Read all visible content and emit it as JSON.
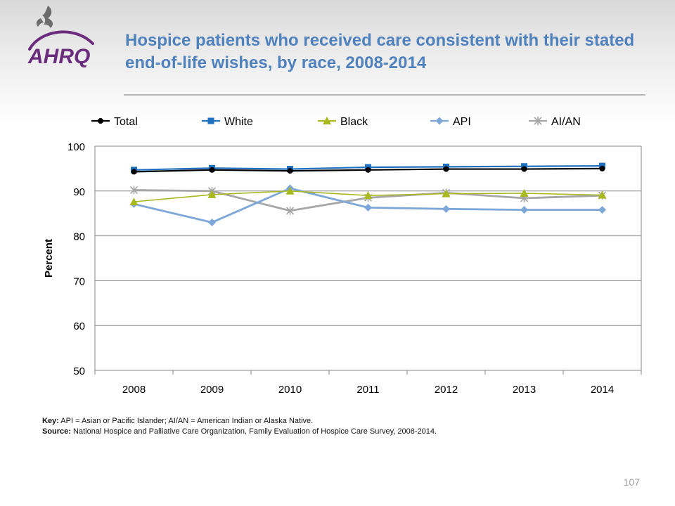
{
  "header": {
    "logo_text": "AHRQ",
    "title": "Hospice patients who received care consistent with their stated end-of-life wishes, by race, 2008-2014"
  },
  "notes": {
    "key_label": "Key:",
    "key_text": "API = Asian or Pacific Islander; AI/AN = American Indian or Alaska Native.",
    "source_label": "Source:",
    "source_text": "National Hospice and Palliative Care Organization, Family Evaluation of Hospice Care Survey, 2008-2014."
  },
  "page_number": "107",
  "chart_data": {
    "type": "line",
    "title": "",
    "xlabel": "",
    "ylabel": "Percent",
    "categories": [
      "2008",
      "2009",
      "2010",
      "2011",
      "2012",
      "2013",
      "2014"
    ],
    "ylim": [
      50,
      100
    ],
    "yticks": [
      50,
      60,
      70,
      80,
      90,
      100
    ],
    "grid": true,
    "legend_position": "top",
    "series": [
      {
        "name": "Total",
        "color": "#000000",
        "marker": "circle",
        "values": [
          94.3,
          94.7,
          94.5,
          94.7,
          94.9,
          94.9,
          95.0
        ]
      },
      {
        "name": "White",
        "color": "#1f6fbf",
        "marker": "square",
        "values": [
          94.7,
          95.1,
          94.9,
          95.3,
          95.4,
          95.5,
          95.6
        ]
      },
      {
        "name": "Black",
        "color": "#a8b81e",
        "marker": "triangle",
        "values": [
          87.6,
          89.2,
          90.0,
          89.0,
          89.4,
          89.5,
          89.1
        ]
      },
      {
        "name": "API",
        "color": "#7da7d9",
        "marker": "diamond",
        "values": [
          87.1,
          83.0,
          90.6,
          86.3,
          86.0,
          85.8,
          85.8
        ]
      },
      {
        "name": "AI/AN",
        "color": "#a6a6a6",
        "marker": "star",
        "values": [
          90.2,
          90.0,
          85.6,
          88.5,
          89.6,
          88.4,
          89.0
        ]
      }
    ]
  }
}
